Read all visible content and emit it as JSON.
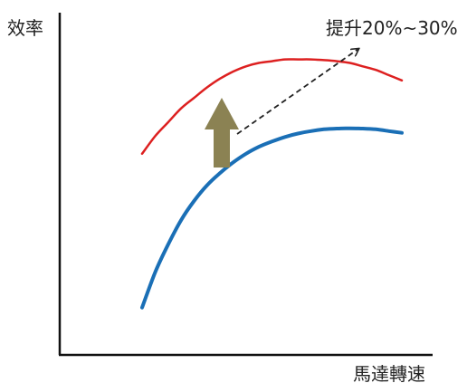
{
  "chart_data": {
    "type": "line",
    "xlabel": "馬達轉速",
    "ylabel": "效率",
    "annotation": "提升20%~30%",
    "grid": false,
    "legend": "none",
    "x": [
      0,
      5,
      10,
      15,
      20,
      25,
      30,
      35,
      40,
      45,
      50,
      55,
      60,
      65,
      70,
      75,
      80,
      85,
      90,
      95,
      100
    ],
    "series": [
      {
        "color": "#dd2020",
        "values": [
          56,
          61,
          65,
          69,
          72,
          75,
          77.5,
          79.5,
          81,
          82,
          82.5,
          83,
          83,
          83,
          82.8,
          82.5,
          82,
          81,
          80,
          78.5,
          77
        ]
      },
      {
        "color": "#1a6fb6",
        "values": [
          12,
          22,
          30,
          37,
          42.5,
          47,
          50.5,
          53.5,
          56,
          58,
          59.5,
          60.8,
          61.8,
          62.5,
          63,
          63.2,
          63.3,
          63.2,
          63,
          62.5,
          62
        ]
      }
    ],
    "arrow_color": "#8b8253"
  }
}
